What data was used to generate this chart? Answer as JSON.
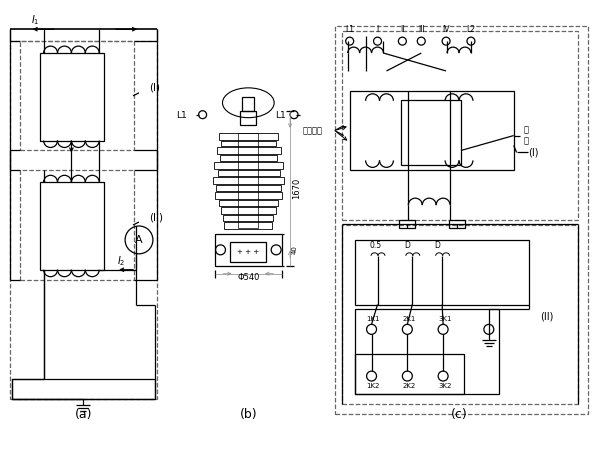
{
  "bg_color": "#ffffff",
  "line_color": "#000000",
  "dash_color": "#666666",
  "label_a": "(a)",
  "label_b": "(b)",
  "label_c": "(c)",
  "label_I": "(I)",
  "label_II": "(II)",
  "pingheng": "平衡绕组",
  "tiexin": "铁\n芯"
}
